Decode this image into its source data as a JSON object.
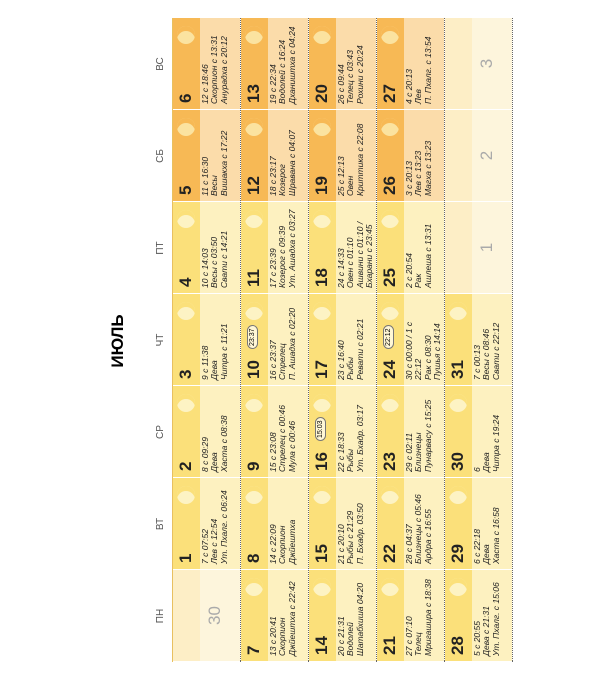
{
  "title": "ИЮЛЬ",
  "weekdays": [
    "ПН",
    "ВТ",
    "СР",
    "ЧТ",
    "ПТ",
    "СБ",
    "ВС"
  ],
  "weeks": [
    [
      {
        "day": 30,
        "muted": true,
        "lines": []
      },
      {
        "day": 1,
        "lines": [
          "7 с 07:52",
          "Лев с 12:54",
          "Ут. Пхалг. с 06:24"
        ]
      },
      {
        "day": 2,
        "lines": [
          "8 с 09:29",
          "Дева",
          "Хаста с 08:38"
        ]
      },
      {
        "day": 3,
        "lines": [
          "9 с 11:38",
          "Дева",
          "Читра с 11:21"
        ]
      },
      {
        "day": 4,
        "lines": [
          "10 с 14:03",
          "Весы с 03:50",
          "Свати с 14:21"
        ]
      },
      {
        "day": 5,
        "lines": [
          "11 с 16:30",
          "Весы",
          "Вишакха с 17:22"
        ]
      },
      {
        "day": 6,
        "lines": [
          "12 с 18:46",
          "Скорпион с 13:31",
          "Анурадха с 20:12"
        ]
      }
    ],
    [
      {
        "day": 7,
        "lines": [
          "13 с 20:41",
          "Скорпион",
          "Джйештха с 22:42"
        ]
      },
      {
        "day": 8,
        "lines": [
          "14 с 22:09",
          "Скорпион",
          "Джйештха"
        ]
      },
      {
        "day": 9,
        "lines": [
          "15 с 23:08",
          "Стрелец с 00:46",
          "Мула с 00:46"
        ]
      },
      {
        "day": 10,
        "badge": "23:37",
        "lines": [
          "16 с 23:37",
          "Стрелец",
          "П. Ашадха с 02:20"
        ]
      },
      {
        "day": 11,
        "lines": [
          "17 с 23:39",
          "Козерог с 09:39",
          "Ут. Ашадха с 03:27"
        ]
      },
      {
        "day": 12,
        "lines": [
          "18 с 23:17",
          "Козерог",
          "Шравана с 04:07"
        ]
      },
      {
        "day": 13,
        "lines": [
          "19 с 22:34",
          "Водолей с 16:24",
          "Дхаништха с 04:24"
        ]
      }
    ],
    [
      {
        "day": 14,
        "lines": [
          "20 с 21:31",
          "Водолей",
          "Шатабхиша 04:20"
        ]
      },
      {
        "day": 15,
        "lines": [
          "21 с 20:10",
          "Рыбы с 21:29",
          "П. Бхадр. 03:50"
        ]
      },
      {
        "day": 16,
        "badge": "15:03",
        "lines": [
          "22 с 18:33",
          "Рыбы",
          "Ут. Бхадр. 03:17"
        ]
      },
      {
        "day": 17,
        "lines": [
          "23 с 16:40",
          "Рыбы",
          "Ревати с 02:21"
        ]
      },
      {
        "day": 18,
        "lines": [
          "24 с 14:33",
          "Овен с 01:10",
          "Ашвини с 01:10 /",
          "Бхарани с 23:45"
        ]
      },
      {
        "day": 19,
        "lines": [
          "25 с 12:13",
          "Овен",
          "Криттика с 22:08"
        ]
      },
      {
        "day": 20,
        "lines": [
          "26 с 09:44",
          "Телец с 03:43",
          "Рохини с 20:24"
        ]
      }
    ],
    [
      {
        "day": 21,
        "lines": [
          "27 с 07:10",
          "Телец",
          "Мригашира с 18:38"
        ]
      },
      {
        "day": 22,
        "lines": [
          "28 с 04:37",
          "Близнецы с 05:46",
          "Ардра с 16:55"
        ]
      },
      {
        "day": 23,
        "lines": [
          "29 с 02:11",
          "Близнецы",
          "Пунарвасу с 15:25"
        ]
      },
      {
        "day": 24,
        "badge": "22:12",
        "lines": [
          "30 с 00:00 / 1 с",
          "22:12",
          "Рак с 08:30",
          "Пушья с 14:14"
        ]
      },
      {
        "day": 25,
        "lines": [
          "2 с 20:54",
          "Рак",
          "Ашлеша с 13:31"
        ]
      },
      {
        "day": 26,
        "lines": [
          "3 с 20:13",
          "Лев с 13:23",
          "Магха с 13:23"
        ]
      },
      {
        "day": 27,
        "lines": [
          "4 с 20:13",
          "Лев",
          "П. Пхалг. с 13:54"
        ]
      }
    ],
    [
      {
        "day": 28,
        "lines": [
          "5 с 20:55",
          "Дева с 21:31",
          "Ут. Пхалг. с 15:06"
        ]
      },
      {
        "day": 29,
        "lines": [
          "6 с 22:18",
          "Дева",
          "Хаста с 16:58"
        ]
      },
      {
        "day": 30,
        "lines": [
          "6",
          "Дева",
          "Читра с 19:24"
        ]
      },
      {
        "day": 31,
        "lines": [
          "7 с 00:13",
          "Весы с 08:46",
          "Свати с 22:12"
        ]
      },
      {
        "day": 1,
        "muted": true,
        "lines": []
      },
      {
        "day": 2,
        "muted": true,
        "lines": []
      },
      {
        "day": 3,
        "muted": true,
        "lines": []
      }
    ]
  ]
}
